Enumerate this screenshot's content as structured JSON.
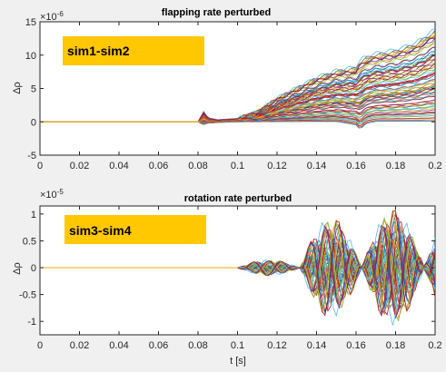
{
  "chart_data": [
    {
      "type": "line",
      "title": "flapping rate perturbed",
      "xlabel": "",
      "ylabel": "Δρ",
      "exponent_label": "×10",
      "exponent_value": "-6",
      "xlim": [
        0,
        0.2
      ],
      "ylim": [
        -5,
        15
      ],
      "xticks": [
        0,
        0.02,
        0.04,
        0.06,
        0.08,
        0.1,
        0.12,
        0.14,
        0.16,
        0.18,
        0.2
      ],
      "xtick_labels": [
        "0",
        "0.02",
        "0.04",
        "0.06",
        "0.08",
        "0.1",
        "0.12",
        "0.14",
        "0.16",
        "0.18",
        "0.2"
      ],
      "yticks": [
        -5,
        0,
        5,
        10,
        15
      ],
      "ytick_labels": [
        "-5",
        "0",
        "5",
        "10",
        "15"
      ],
      "grid": false,
      "annotation": "sim1-sim2",
      "envelope": {
        "x": [
          0,
          0.081,
          0.082,
          0.083,
          0.085,
          0.09,
          0.1,
          0.11,
          0.12,
          0.13,
          0.14,
          0.15,
          0.16,
          0.162,
          0.165,
          0.17,
          0.18,
          0.19,
          0.2
        ],
        "upper": [
          0,
          0,
          1.8,
          1.5,
          0.6,
          0.3,
          0.5,
          1.5,
          3.5,
          5,
          6.5,
          7.5,
          8,
          9,
          9.5,
          10,
          10.5,
          11.5,
          13.5
        ],
        "lower": [
          0,
          0,
          -0.6,
          -0.4,
          -0.2,
          -0.1,
          0,
          0,
          0,
          0,
          0,
          0,
          -0.5,
          -1.2,
          -0.3,
          0,
          0,
          0,
          0
        ]
      }
    },
    {
      "type": "line",
      "title": "rotation rate perturbed",
      "xlabel": "t [s]",
      "ylabel": "Δρ",
      "exponent_label": "×10",
      "exponent_value": "-5",
      "xlim": [
        0,
        0.2
      ],
      "ylim": [
        -1.25,
        1.15
      ],
      "xticks": [
        0,
        0.02,
        0.04,
        0.06,
        0.08,
        0.1,
        0.12,
        0.14,
        0.16,
        0.18,
        0.2
      ],
      "xtick_labels": [
        "0",
        "0.02",
        "0.04",
        "0.06",
        "0.08",
        "0.1",
        "0.12",
        "0.14",
        "0.16",
        "0.18",
        "0.2"
      ],
      "yticks": [
        -1,
        -0.5,
        0,
        0.5,
        1
      ],
      "ytick_labels": [
        "-1",
        "-0.5",
        "0",
        "0.5",
        "1"
      ],
      "grid": false,
      "annotation": "sim3-sim4",
      "envelope": {
        "lobe_start": 0.1,
        "lobe_period": 0.0315,
        "lobe_amplitudes": [
          0.15,
          0.95,
          1.1,
          1.1,
          1.05,
          1.1
        ]
      }
    }
  ],
  "colors": {
    "annotation_bg": "#ffc800",
    "series": [
      "#0072bd",
      "#d95319",
      "#edb120",
      "#7e2f8e",
      "#77ac30",
      "#4dbeee",
      "#a2142f"
    ]
  }
}
